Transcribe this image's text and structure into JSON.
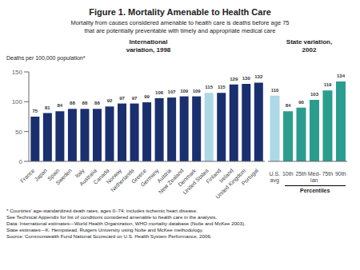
{
  "title": "Figure 1. Mortality Amenable to Health Care",
  "subtitle": "Mortality from causes considered amenable to health care is deaths before age 75\nthat are potentially preventable with timely and appropriate medical care",
  "footnote": "* Countries' age-standardized death rates, ages 0–74; includes ischemic heart disease.\nSee Technical Appendix for list of conditions considered amenable to health care in the analysis.\nData: International estimates—World Health Organization, WHO mortality database (Nolte and McKee 2003).\nState estimates—K. Hempstead, Rutgers University using Nolte and McKee methodology.\nSource: Commonwealth Fund National Scorecard on U.S. Health System Performance, 2006.",
  "chart_data": [
    {
      "type": "bar",
      "title": "International\nvariation, 1998",
      "ylabel": "Deaths per 100,000 population*",
      "categories": [
        "France",
        "Japan",
        "Spain",
        "Sweden",
        "Italy",
        "Australia",
        "Canada",
        "Norway",
        "Netherlands",
        "Greece",
        "Germany",
        "Austria",
        "New Zealand",
        "Denmark",
        "United States",
        "Finland",
        "Ireland",
        "United Kingdom",
        "Portugal"
      ],
      "values": [
        75,
        81,
        84,
        88,
        88,
        88,
        92,
        97,
        97,
        99,
        106,
        107,
        109,
        109,
        115,
        115,
        129,
        130,
        132
      ],
      "colors": [
        "#1a2f6e",
        "#1a2f6e",
        "#1a2f6e",
        "#1a2f6e",
        "#1a2f6e",
        "#1a2f6e",
        "#1a2f6e",
        "#1a2f6e",
        "#1a2f6e",
        "#1a2f6e",
        "#1a2f6e",
        "#1a2f6e",
        "#1a2f6e",
        "#1a2f6e",
        "#add8e6",
        "#1a2f6e",
        "#1a2f6e",
        "#1a2f6e",
        "#1a2f6e"
      ],
      "ylim": [
        0,
        150
      ],
      "yticks": [
        0,
        50,
        100,
        150
      ],
      "data_labels": true
    },
    {
      "type": "bar",
      "title": "State variation,\n2002",
      "categories": [
        "U.S.\navg",
        "10th",
        "25th",
        "Med-\nian",
        "75th",
        "90th"
      ],
      "values": [
        110,
        84,
        90,
        103,
        119,
        134
      ],
      "colors": [
        "#add8e6",
        "#2a9d8f",
        "#2a9d8f",
        "#2a9d8f",
        "#2a9d8f",
        "#2a9d8f"
      ],
      "ylim": [
        0,
        150
      ],
      "yticks": [],
      "annotation": "Percentiles",
      "tick_labels": "x",
      "data_labels": true
    }
  ]
}
